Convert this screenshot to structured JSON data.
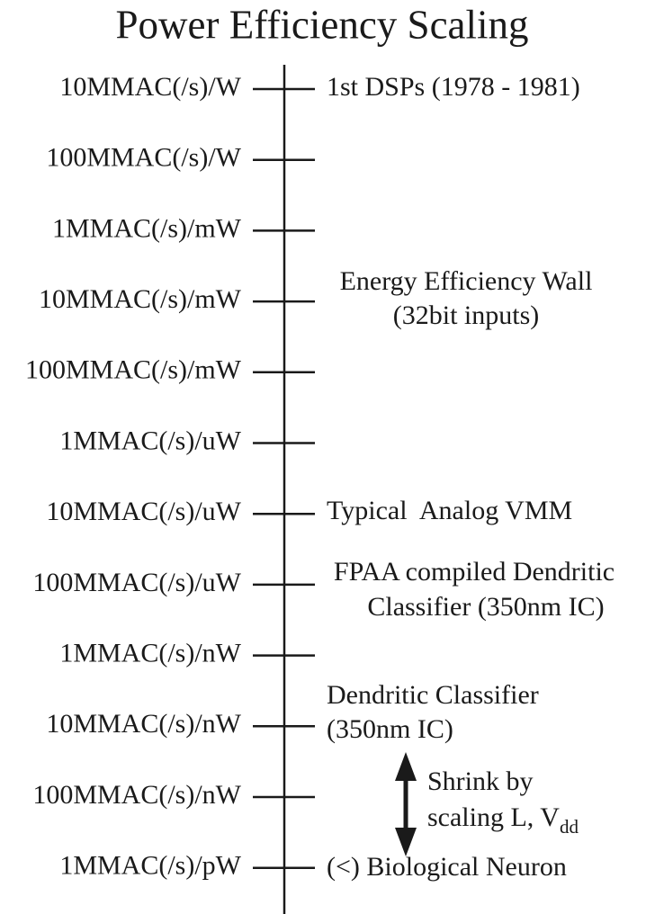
{
  "title": "Power Efficiency Scaling",
  "scale_labels": [
    "10MMAC(/s)/W",
    "100MMAC(/s)/W",
    "1MMAC(/s)/mW",
    "10MMAC(/s)/mW",
    "100MMAC(/s)/mW",
    "1MMAC(/s)/uW",
    "10MMAC(/s)/uW",
    "100MMAC(/s)/uW",
    "1MMAC(/s)/nW",
    "10MMAC(/s)/nW",
    "100MMAC(/s)/nW",
    "1MMAC(/s)/pW"
  ],
  "annotations": {
    "dsps": "1st DSPs (1978 - 1981)",
    "wall": [
      "Energy Efficiency Wall",
      "(32bit inputs)"
    ],
    "vmm": "Typical  Analog VMM",
    "fpaa": [
      "FPAA compiled Dendritic",
      "Classifier (350nm IC)"
    ],
    "dendritic": [
      "Dendritic Classifier",
      "(350nm IC)"
    ],
    "shrink": {
      "line1": "Shrink by",
      "line2": "scaling L, V",
      "subscript": "dd"
    },
    "neuron": "(<) Biological Neuron"
  }
}
